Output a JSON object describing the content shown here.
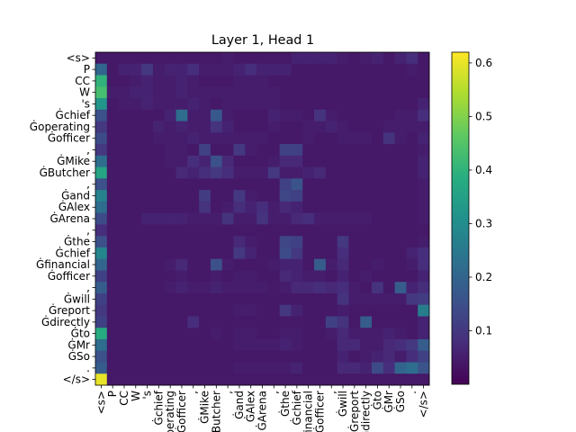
{
  "chart_data": {
    "type": "heatmap",
    "title": "Layer 1, Head 1",
    "colormap": "viridis",
    "tokens": [
      "<s>",
      "P",
      "CC",
      "W",
      "'s",
      "Ġchief",
      "Ġoperating",
      "Ġofficer",
      ",",
      "ĠMike",
      "ĠButcher",
      ",",
      "Ġand",
      "ĠAlex",
      "ĠArena",
      ",",
      "Ġthe",
      "Ġchief",
      "Ġfinancial",
      "Ġofficer",
      ",",
      "Ġwill",
      "Ġreport",
      "Ġdirectly",
      "Ġto",
      "ĠMr",
      "ĠSo",
      ".",
      "</s>"
    ],
    "colorbar": {
      "min": 0.0,
      "max": 0.62,
      "ticks": [
        0.1,
        0.2,
        0.3,
        0.4,
        0.5,
        0.6
      ],
      "tick_labels": [
        "0.1",
        "0.2",
        "0.3",
        "0.4",
        "0.5",
        "0.6"
      ]
    },
    "grid": false,
    "values": [
      [
        0.04,
        0.04,
        0.04,
        0.04,
        0.04,
        0.04,
        0.04,
        0.04,
        0.04,
        0.04,
        0.04,
        0.05,
        0.04,
        0.04,
        0.04,
        0.04,
        0.04,
        0.06,
        0.06,
        0.06,
        0.06,
        0.05,
        0.04,
        0.05,
        0.06,
        0.04,
        0.06,
        0.08,
        0.04
      ],
      [
        0.2,
        0.04,
        0.06,
        0.06,
        0.1,
        0.05,
        0.06,
        0.06,
        0.08,
        0.05,
        0.05,
        0.05,
        0.06,
        0.08,
        0.06,
        0.06,
        0.06,
        0.04,
        0.04,
        0.04,
        0.04,
        0.04,
        0.04,
        0.04,
        0.04,
        0.04,
        0.04,
        0.05,
        0.04
      ],
      [
        0.4,
        0.04,
        0.04,
        0.05,
        0.06,
        0.05,
        0.05,
        0.06,
        0.05,
        0.04,
        0.04,
        0.04,
        0.05,
        0.05,
        0.05,
        0.04,
        0.04,
        0.04,
        0.04,
        0.04,
        0.04,
        0.04,
        0.04,
        0.04,
        0.04,
        0.04,
        0.04,
        0.04,
        0.04
      ],
      [
        0.43,
        0.05,
        0.05,
        0.06,
        0.06,
        0.05,
        0.05,
        0.06,
        0.05,
        0.05,
        0.05,
        0.05,
        0.05,
        0.05,
        0.05,
        0.05,
        0.04,
        0.04,
        0.04,
        0.04,
        0.04,
        0.04,
        0.04,
        0.04,
        0.04,
        0.04,
        0.04,
        0.04,
        0.04
      ],
      [
        0.32,
        0.04,
        0.05,
        0.05,
        0.06,
        0.05,
        0.05,
        0.05,
        0.06,
        0.05,
        0.04,
        0.05,
        0.05,
        0.05,
        0.05,
        0.05,
        0.04,
        0.04,
        0.04,
        0.04,
        0.04,
        0.04,
        0.04,
        0.04,
        0.04,
        0.04,
        0.04,
        0.04,
        0.06
      ],
      [
        0.15,
        0.04,
        0.04,
        0.04,
        0.04,
        0.04,
        0.06,
        0.22,
        0.05,
        0.05,
        0.17,
        0.05,
        0.04,
        0.04,
        0.04,
        0.06,
        0.05,
        0.05,
        0.04,
        0.09,
        0.05,
        0.04,
        0.04,
        0.04,
        0.04,
        0.04,
        0.05,
        0.05,
        0.08
      ],
      [
        0.1,
        0.04,
        0.04,
        0.04,
        0.04,
        0.06,
        0.05,
        0.06,
        0.05,
        0.05,
        0.09,
        0.06,
        0.04,
        0.04,
        0.04,
        0.05,
        0.04,
        0.04,
        0.05,
        0.05,
        0.06,
        0.05,
        0.04,
        0.04,
        0.04,
        0.05,
        0.05,
        0.05,
        0.05
      ],
      [
        0.14,
        0.04,
        0.04,
        0.04,
        0.04,
        0.05,
        0.05,
        0.05,
        0.06,
        0.05,
        0.05,
        0.05,
        0.05,
        0.05,
        0.05,
        0.04,
        0.04,
        0.04,
        0.05,
        0.04,
        0.04,
        0.05,
        0.05,
        0.05,
        0.04,
        0.09,
        0.05,
        0.04,
        0.06
      ],
      [
        0.1,
        0.04,
        0.04,
        0.04,
        0.04,
        0.04,
        0.05,
        0.05,
        0.04,
        0.12,
        0.04,
        0.04,
        0.1,
        0.05,
        0.04,
        0.04,
        0.12,
        0.12,
        0.04,
        0.04,
        0.04,
        0.04,
        0.04,
        0.04,
        0.04,
        0.04,
        0.04,
        0.04,
        0.05
      ],
      [
        0.22,
        0.04,
        0.04,
        0.04,
        0.04,
        0.04,
        0.05,
        0.05,
        0.08,
        0.06,
        0.15,
        0.07,
        0.04,
        0.04,
        0.04,
        0.05,
        0.07,
        0.07,
        0.04,
        0.04,
        0.04,
        0.04,
        0.04,
        0.04,
        0.04,
        0.04,
        0.04,
        0.04,
        0.06
      ],
      [
        0.36,
        0.04,
        0.04,
        0.04,
        0.04,
        0.04,
        0.04,
        0.07,
        0.06,
        0.08,
        0.1,
        0.08,
        0.05,
        0.05,
        0.05,
        0.1,
        0.05,
        0.05,
        0.06,
        0.07,
        0.04,
        0.04,
        0.04,
        0.04,
        0.04,
        0.04,
        0.04,
        0.04,
        0.06
      ],
      [
        0.15,
        0.04,
        0.04,
        0.04,
        0.04,
        0.04,
        0.04,
        0.04,
        0.04,
        0.04,
        0.04,
        0.04,
        0.04,
        0.04,
        0.04,
        0.04,
        0.12,
        0.16,
        0.04,
        0.04,
        0.04,
        0.04,
        0.04,
        0.04,
        0.04,
        0.04,
        0.04,
        0.04,
        0.05
      ],
      [
        0.27,
        0.04,
        0.04,
        0.04,
        0.04,
        0.04,
        0.04,
        0.04,
        0.04,
        0.11,
        0.04,
        0.04,
        0.1,
        0.05,
        0.04,
        0.04,
        0.13,
        0.12,
        0.04,
        0.04,
        0.04,
        0.04,
        0.04,
        0.04,
        0.04,
        0.04,
        0.04,
        0.04,
        0.05
      ],
      [
        0.22,
        0.04,
        0.04,
        0.04,
        0.04,
        0.04,
        0.04,
        0.04,
        0.04,
        0.09,
        0.04,
        0.05,
        0.08,
        0.06,
        0.08,
        0.05,
        0.07,
        0.06,
        0.04,
        0.04,
        0.04,
        0.04,
        0.04,
        0.04,
        0.04,
        0.04,
        0.04,
        0.04,
        0.05
      ],
      [
        0.14,
        0.04,
        0.04,
        0.04,
        0.06,
        0.06,
        0.06,
        0.06,
        0.05,
        0.05,
        0.05,
        0.09,
        0.05,
        0.05,
        0.09,
        0.05,
        0.05,
        0.07,
        0.08,
        0.05,
        0.05,
        0.05,
        0.05,
        0.05,
        0.04,
        0.04,
        0.04,
        0.04,
        0.05
      ],
      [
        0.08,
        0.04,
        0.04,
        0.04,
        0.04,
        0.04,
        0.04,
        0.04,
        0.04,
        0.04,
        0.04,
        0.04,
        0.04,
        0.04,
        0.04,
        0.04,
        0.04,
        0.04,
        0.04,
        0.04,
        0.04,
        0.04,
        0.04,
        0.04,
        0.04,
        0.04,
        0.04,
        0.04,
        0.04
      ],
      [
        0.15,
        0.04,
        0.04,
        0.04,
        0.04,
        0.04,
        0.04,
        0.04,
        0.04,
        0.04,
        0.04,
        0.04,
        0.07,
        0.05,
        0.04,
        0.04,
        0.13,
        0.12,
        0.04,
        0.04,
        0.04,
        0.1,
        0.04,
        0.04,
        0.04,
        0.04,
        0.04,
        0.04,
        0.05
      ],
      [
        0.28,
        0.04,
        0.04,
        0.04,
        0.04,
        0.04,
        0.04,
        0.04,
        0.04,
        0.04,
        0.04,
        0.04,
        0.1,
        0.06,
        0.04,
        0.04,
        0.14,
        0.1,
        0.04,
        0.04,
        0.04,
        0.08,
        0.04,
        0.04,
        0.04,
        0.04,
        0.04,
        0.06,
        0.08
      ],
      [
        0.2,
        0.04,
        0.04,
        0.04,
        0.04,
        0.04,
        0.05,
        0.07,
        0.04,
        0.04,
        0.15,
        0.05,
        0.04,
        0.04,
        0.04,
        0.05,
        0.06,
        0.06,
        0.04,
        0.18,
        0.05,
        0.07,
        0.04,
        0.04,
        0.05,
        0.04,
        0.04,
        0.05,
        0.08
      ],
      [
        0.12,
        0.04,
        0.04,
        0.04,
        0.04,
        0.04,
        0.04,
        0.05,
        0.04,
        0.04,
        0.05,
        0.04,
        0.05,
        0.05,
        0.04,
        0.04,
        0.07,
        0.06,
        0.05,
        0.05,
        0.04,
        0.06,
        0.04,
        0.05,
        0.04,
        0.04,
        0.04,
        0.04,
        0.06
      ],
      [
        0.18,
        0.04,
        0.04,
        0.04,
        0.04,
        0.04,
        0.05,
        0.06,
        0.05,
        0.05,
        0.06,
        0.05,
        0.05,
        0.05,
        0.05,
        0.04,
        0.05,
        0.07,
        0.07,
        0.08,
        0.07,
        0.08,
        0.05,
        0.04,
        0.09,
        0.04,
        0.18,
        0.06,
        0.08
      ],
      [
        0.12,
        0.04,
        0.04,
        0.04,
        0.04,
        0.04,
        0.04,
        0.04,
        0.04,
        0.04,
        0.04,
        0.04,
        0.04,
        0.04,
        0.04,
        0.04,
        0.04,
        0.04,
        0.04,
        0.04,
        0.04,
        0.09,
        0.05,
        0.05,
        0.05,
        0.05,
        0.05,
        0.1,
        0.11
      ],
      [
        0.1,
        0.04,
        0.04,
        0.04,
        0.04,
        0.04,
        0.04,
        0.04,
        0.04,
        0.04,
        0.04,
        0.04,
        0.05,
        0.05,
        0.04,
        0.04,
        0.1,
        0.06,
        0.04,
        0.04,
        0.04,
        0.05,
        0.04,
        0.04,
        0.04,
        0.04,
        0.04,
        0.04,
        0.26
      ],
      [
        0.12,
        0.04,
        0.04,
        0.04,
        0.04,
        0.04,
        0.04,
        0.04,
        0.08,
        0.04,
        0.04,
        0.04,
        0.04,
        0.04,
        0.04,
        0.04,
        0.04,
        0.04,
        0.04,
        0.04,
        0.12,
        0.09,
        0.04,
        0.18,
        0.04,
        0.04,
        0.04,
        0.04,
        0.06
      ],
      [
        0.38,
        0.04,
        0.04,
        0.04,
        0.04,
        0.04,
        0.04,
        0.04,
        0.04,
        0.04,
        0.05,
        0.04,
        0.05,
        0.05,
        0.04,
        0.04,
        0.05,
        0.05,
        0.04,
        0.04,
        0.05,
        0.07,
        0.05,
        0.05,
        0.05,
        0.06,
        0.05,
        0.04,
        0.06
      ],
      [
        0.22,
        0.04,
        0.04,
        0.04,
        0.04,
        0.04,
        0.04,
        0.04,
        0.04,
        0.04,
        0.04,
        0.04,
        0.05,
        0.05,
        0.05,
        0.05,
        0.06,
        0.05,
        0.04,
        0.04,
        0.04,
        0.07,
        0.07,
        0.05,
        0.05,
        0.07,
        0.08,
        0.1,
        0.18
      ],
      [
        0.15,
        0.04,
        0.04,
        0.04,
        0.04,
        0.04,
        0.04,
        0.04,
        0.04,
        0.04,
        0.04,
        0.04,
        0.04,
        0.04,
        0.04,
        0.04,
        0.04,
        0.04,
        0.04,
        0.04,
        0.04,
        0.06,
        0.04,
        0.05,
        0.06,
        0.07,
        0.05,
        0.08,
        0.12
      ],
      [
        0.18,
        0.04,
        0.04,
        0.04,
        0.04,
        0.04,
        0.04,
        0.04,
        0.04,
        0.04,
        0.04,
        0.04,
        0.05,
        0.05,
        0.05,
        0.05,
        0.05,
        0.06,
        0.04,
        0.04,
        0.04,
        0.07,
        0.07,
        0.06,
        0.14,
        0.08,
        0.2,
        0.22,
        0.16
      ],
      [
        0.6,
        0.04,
        0.04,
        0.04,
        0.04,
        0.04,
        0.04,
        0.04,
        0.04,
        0.04,
        0.04,
        0.04,
        0.04,
        0.04,
        0.04,
        0.04,
        0.04,
        0.04,
        0.04,
        0.04,
        0.04,
        0.04,
        0.04,
        0.04,
        0.04,
        0.04,
        0.04,
        0.04,
        0.04
      ]
    ]
  }
}
